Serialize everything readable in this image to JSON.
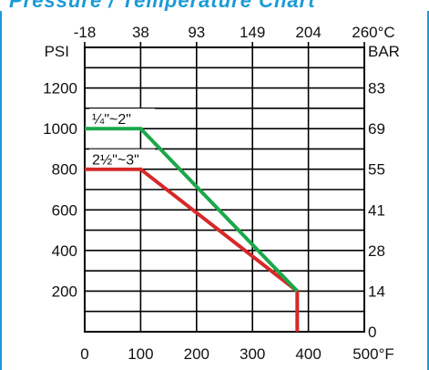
{
  "title_fragment": "Pressure / Temperature Chart",
  "colors": {
    "band": "#1a9bd7",
    "band_text": "#1a9bd7",
    "grid": "#000000",
    "series_small": "#1aa84a",
    "series_large": "#d62828"
  },
  "chart_data": {
    "type": "line",
    "top_axis_label": "",
    "top_axis_ticks": [
      "-18",
      "38",
      "93",
      "149",
      "204",
      "260°C"
    ],
    "bottom_axis_ticks": [
      "0",
      "100",
      "200",
      "300",
      "400",
      "500°F"
    ],
    "left_axis_unit": "PSI",
    "left_axis_ticks": [
      "200",
      "400",
      "600",
      "800",
      "1000",
      "1200"
    ],
    "right_axis_unit": "BAR",
    "right_axis_ticks": [
      "0",
      "14",
      "28",
      "41",
      "55",
      "69",
      "83"
    ],
    "xlim": [
      0,
      500
    ],
    "ylim": [
      0,
      1400
    ],
    "grid": true,
    "series": [
      {
        "name": "¼\"~2\"",
        "points": [
          [
            0,
            1000
          ],
          [
            100,
            1000
          ],
          [
            380,
            200
          ]
        ]
      },
      {
        "name": "2½\"~3\"",
        "points": [
          [
            0,
            800
          ],
          [
            100,
            800
          ],
          [
            380,
            200
          ],
          [
            380,
            0
          ]
        ]
      }
    ]
  }
}
